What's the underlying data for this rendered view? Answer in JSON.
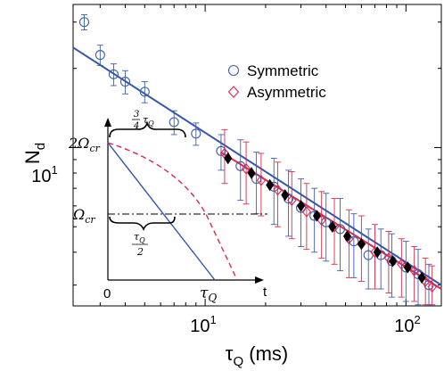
{
  "chart_data": {
    "type": "scatter",
    "xscale": "log",
    "yscale": "log",
    "xlim": [
      2.2,
      150
    ],
    "ylim": [
      2.5,
      35
    ],
    "grid": false,
    "xlabel": "τ",
    "xlabel_sub": "Q",
    "xlabel_unit": " (ms)",
    "ylabel": "N",
    "ylabel_sub": "d",
    "xticks": [
      {
        "value": 10,
        "base": "10",
        "exp": "1"
      },
      {
        "value": 100,
        "base": "10",
        "exp": "2"
      }
    ],
    "yticks": [
      {
        "value": 10,
        "base": "10",
        "exp": "1"
      }
    ],
    "legend": {
      "position": "top-right",
      "entries": [
        {
          "label": "Symmetric",
          "marker": "circle",
          "color": "#3b5fb0"
        },
        {
          "label": "Asymmetric",
          "marker": "diamond",
          "color": "#e0284a"
        }
      ]
    },
    "series": [
      {
        "name": "Symmetric",
        "marker": "circle",
        "color": "#3b5fb0",
        "points": [
          {
            "x": 2.5,
            "y": 30.0,
            "yerr": [
              2.0,
              2.0
            ]
          },
          {
            "x": 3.0,
            "y": 22.5,
            "yerr": [
              2.0,
              2.0
            ]
          },
          {
            "x": 3.5,
            "y": 19.0,
            "yerr": [
              1.8,
              1.8
            ]
          },
          {
            "x": 4.0,
            "y": 17.8,
            "yerr": [
              1.8,
              1.8
            ]
          },
          {
            "x": 5.0,
            "y": 16.3,
            "yerr": [
              1.5,
              1.5
            ]
          },
          {
            "x": 7.0,
            "y": 12.5,
            "yerr": [
              1.3,
              1.3
            ]
          },
          {
            "x": 9.0,
            "y": 11.3,
            "yerr": [
              1.1,
              1.1
            ]
          },
          {
            "x": 12.0,
            "y": 9.7,
            "yerr": [
              1.5,
              1.5
            ]
          },
          {
            "x": 15.0,
            "y": 8.5,
            "yerr": [
              2.2,
              2.2
            ]
          },
          {
            "x": 18.0,
            "y": 7.6,
            "yerr": [
              2.0,
              2.0
            ]
          },
          {
            "x": 22.0,
            "y": 7.1,
            "yerr": [
              2.0,
              2.0
            ]
          },
          {
            "x": 26.0,
            "y": 6.4,
            "yerr": [
              1.8,
              1.8
            ]
          },
          {
            "x": 30.0,
            "y": 5.9,
            "yerr": [
              1.7,
              1.7
            ]
          },
          {
            "x": 35.0,
            "y": 5.5,
            "yerr": [
              1.5,
              1.5
            ]
          },
          {
            "x": 40.0,
            "y": 5.2,
            "yerr": [
              1.5,
              1.5
            ]
          },
          {
            "x": 47.0,
            "y": 4.9,
            "yerr": [
              1.5,
              1.5
            ]
          },
          {
            "x": 55.0,
            "y": 4.4,
            "yerr": [
              1.2,
              1.2
            ]
          },
          {
            "x": 65.0,
            "y": 3.9,
            "yerr": [
              1.0,
              1.0
            ]
          },
          {
            "x": 75.0,
            "y": 3.9,
            "yerr": [
              1.0,
              1.0
            ]
          },
          {
            "x": 85.0,
            "y": 3.7,
            "yerr": [
              1.0,
              1.0
            ]
          },
          {
            "x": 100.0,
            "y": 3.5,
            "yerr": [
              0.9,
              0.9
            ]
          },
          {
            "x": 115.0,
            "y": 3.3,
            "yerr": [
              0.8,
              0.8
            ]
          },
          {
            "x": 130.0,
            "y": 3.0,
            "yerr": [
              0.6,
              0.6
            ]
          }
        ]
      },
      {
        "name": "Asymmetric",
        "marker": "diamond",
        "color": "#e0284a",
        "points": [
          {
            "x": 12.5,
            "y": 9.5,
            "yerr": [
              2.2,
              2.2
            ]
          },
          {
            "x": 16.0,
            "y": 8.3,
            "yerr": [
              2.2,
              2.2
            ]
          },
          {
            "x": 19.0,
            "y": 7.5,
            "yerr": [
              2.0,
              2.0
            ]
          },
          {
            "x": 23.0,
            "y": 6.9,
            "yerr": [
              1.9,
              1.9
            ]
          },
          {
            "x": 27.0,
            "y": 6.3,
            "yerr": [
              1.8,
              1.8
            ]
          },
          {
            "x": 32.0,
            "y": 5.7,
            "yerr": [
              1.6,
              1.6
            ]
          },
          {
            "x": 38.0,
            "y": 5.3,
            "yerr": [
              1.5,
              1.5
            ]
          },
          {
            "x": 44.0,
            "y": 5.0,
            "yerr": [
              1.4,
              1.4
            ]
          },
          {
            "x": 52.0,
            "y": 4.5,
            "yerr": [
              1.3,
              1.3
            ]
          },
          {
            "x": 60.0,
            "y": 4.3,
            "yerr": [
              1.2,
              1.2
            ]
          },
          {
            "x": 70.0,
            "y": 4.0,
            "yerr": [
              1.1,
              1.1
            ]
          },
          {
            "x": 82.0,
            "y": 3.8,
            "yerr": [
              1.0,
              1.0
            ]
          },
          {
            "x": 95.0,
            "y": 3.6,
            "yerr": [
              0.9,
              0.9
            ]
          },
          {
            "x": 110.0,
            "y": 3.4,
            "yerr": [
              0.8,
              0.8
            ]
          },
          {
            "x": 125.0,
            "y": 3.1,
            "yerr": [
              0.7,
              0.7
            ]
          },
          {
            "x": 135.0,
            "y": 2.95,
            "yerr": [
              0.6,
              0.6
            ]
          }
        ]
      },
      {
        "name": "",
        "marker": "filled-diamond",
        "color": "#000000",
        "points": [
          {
            "x": 13.0,
            "y": 9.1
          },
          {
            "x": 17.0,
            "y": 8.0
          },
          {
            "x": 21.0,
            "y": 7.2
          },
          {
            "x": 25.0,
            "y": 6.6
          },
          {
            "x": 30.0,
            "y": 6.0
          },
          {
            "x": 36.0,
            "y": 5.5
          },
          {
            "x": 43.0,
            "y": 5.0
          },
          {
            "x": 51.0,
            "y": 4.6
          },
          {
            "x": 60.0,
            "y": 4.3
          },
          {
            "x": 72.0,
            "y": 4.0
          },
          {
            "x": 86.0,
            "y": 3.7
          },
          {
            "x": 102.0,
            "y": 3.5
          },
          {
            "x": 120.0,
            "y": 3.2
          }
        ]
      }
    ],
    "fit_lines": [
      {
        "color": "#3556b0",
        "points": [
          [
            2.2,
            24.0
          ],
          [
            150.0,
            3.0
          ]
        ]
      },
      {
        "color": "#e0284a",
        "points": [
          [
            12.0,
            9.6
          ],
          [
            150.0,
            2.9
          ]
        ]
      }
    ],
    "inset": {
      "y_labels": [
        {
          "base": "2Ω",
          "sub": "cr"
        },
        {
          "base": "Ω",
          "sub": "cr"
        }
      ],
      "x_labels": [
        {
          "text": "0"
        },
        {
          "base": "τ",
          "sub": "Q"
        },
        {
          "text": "t"
        }
      ],
      "brace_labels": [
        {
          "coef_num": "3",
          "coef_den": "4",
          "base": "τ",
          "sub": "Q"
        },
        {
          "num_base": "τ",
          "num_sub": "Q",
          "den": "2"
        }
      ],
      "blue_color": "#3556b0",
      "red_color": "#e0284a"
    }
  }
}
